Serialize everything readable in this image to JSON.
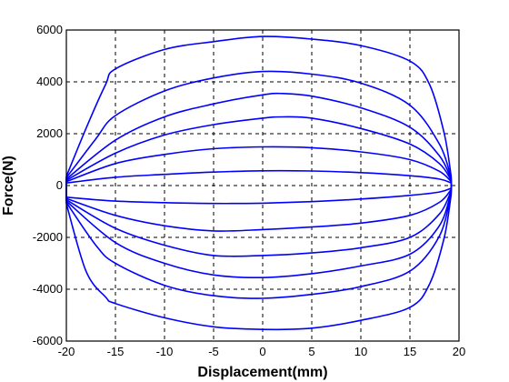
{
  "chart_data": {
    "type": "line",
    "title": "",
    "xlabel": "Displacement(mm)",
    "ylabel": "Force(N)",
    "xlim": [
      -20,
      20
    ],
    "ylim": [
      -6000,
      6000
    ],
    "xticks": [
      -20,
      -15,
      -10,
      -5,
      0,
      5,
      10,
      15,
      20
    ],
    "yticks": [
      -6000,
      -4000,
      -2000,
      0,
      2000,
      4000,
      6000
    ],
    "grid": true,
    "line_color": "#0000ff",
    "series": [
      {
        "upper": [
          [
            -20,
            100
          ],
          [
            -15,
            320
          ],
          [
            -10,
            430
          ],
          [
            -5,
            520
          ],
          [
            0,
            570
          ],
          [
            5,
            560
          ],
          [
            10,
            500
          ],
          [
            15,
            380
          ],
          [
            18,
            250
          ],
          [
            19.2,
            100
          ]
        ],
        "lower": [
          [
            -20,
            -450
          ],
          [
            -15,
            -600
          ],
          [
            -10,
            -660
          ],
          [
            -5,
            -690
          ],
          [
            0,
            -680
          ],
          [
            5,
            -620
          ],
          [
            10,
            -520
          ],
          [
            15,
            -380
          ],
          [
            18,
            -250
          ],
          [
            19.2,
            -100
          ]
        ]
      },
      {
        "upper": [
          [
            -20,
            150
          ],
          [
            -15,
            850
          ],
          [
            -10,
            1200
          ],
          [
            -5,
            1420
          ],
          [
            0,
            1490
          ],
          [
            5,
            1460
          ],
          [
            10,
            1300
          ],
          [
            15,
            1000
          ],
          [
            18,
            550
          ],
          [
            19.2,
            150
          ]
        ],
        "lower": [
          [
            -20,
            -500
          ],
          [
            -15,
            -1150
          ],
          [
            -10,
            -1550
          ],
          [
            -5,
            -1750
          ],
          [
            0,
            -1700
          ],
          [
            5,
            -1600
          ],
          [
            10,
            -1450
          ],
          [
            15,
            -1150
          ],
          [
            18,
            -650
          ],
          [
            19.2,
            -150
          ]
        ]
      },
      {
        "upper": [
          [
            -20,
            200
          ],
          [
            -15,
            1250
          ],
          [
            -10,
            1950
          ],
          [
            -5,
            2350
          ],
          [
            0,
            2600
          ],
          [
            2,
            2650
          ],
          [
            5,
            2600
          ],
          [
            10,
            2200
          ],
          [
            15,
            1600
          ],
          [
            18,
            850
          ],
          [
            19.2,
            200
          ]
        ],
        "lower": [
          [
            -20,
            -550
          ],
          [
            -15,
            -1650
          ],
          [
            -10,
            -2300
          ],
          [
            -5,
            -2700
          ],
          [
            0,
            -2700
          ],
          [
            5,
            -2600
          ],
          [
            10,
            -2400
          ],
          [
            15,
            -2000
          ],
          [
            18,
            -1100
          ],
          [
            19.2,
            -200
          ]
        ]
      },
      {
        "upper": [
          [
            -20,
            250
          ],
          [
            -15,
            1750
          ],
          [
            -10,
            2650
          ],
          [
            -5,
            3150
          ],
          [
            0,
            3500
          ],
          [
            2,
            3550
          ],
          [
            5,
            3450
          ],
          [
            10,
            3000
          ],
          [
            15,
            2250
          ],
          [
            18,
            1150
          ],
          [
            19.2,
            250
          ]
        ],
        "lower": [
          [
            -20,
            -600
          ],
          [
            -15,
            -2200
          ],
          [
            -10,
            -3000
          ],
          [
            -5,
            -3450
          ],
          [
            0,
            -3550
          ],
          [
            5,
            -3400
          ],
          [
            10,
            -3100
          ],
          [
            15,
            -2650
          ],
          [
            18,
            -1550
          ],
          [
            19.2,
            -250
          ]
        ]
      },
      {
        "upper": [
          [
            -20,
            300
          ],
          [
            -17,
            1800
          ],
          [
            -15,
            2700
          ],
          [
            -10,
            3650
          ],
          [
            -5,
            4150
          ],
          [
            0,
            4400
          ],
          [
            5,
            4300
          ],
          [
            10,
            3950
          ],
          [
            15,
            3100
          ],
          [
            18,
            1600
          ],
          [
            19.2,
            300
          ]
        ],
        "lower": [
          [
            -20,
            -650
          ],
          [
            -17,
            -2300
          ],
          [
            -15,
            -3000
          ],
          [
            -10,
            -3850
          ],
          [
            -5,
            -4250
          ],
          [
            0,
            -4350
          ],
          [
            5,
            -4200
          ],
          [
            10,
            -3900
          ],
          [
            15,
            -3300
          ],
          [
            18,
            -1950
          ],
          [
            19.2,
            -300
          ]
        ]
      },
      {
        "upper": [
          [
            -20,
            350
          ],
          [
            -18,
            2200
          ],
          [
            -16,
            3900
          ],
          [
            -15,
            4500
          ],
          [
            -10,
            5250
          ],
          [
            -5,
            5550
          ],
          [
            0,
            5750
          ],
          [
            5,
            5650
          ],
          [
            10,
            5400
          ],
          [
            15,
            4800
          ],
          [
            17,
            3900
          ],
          [
            18.5,
            2000
          ],
          [
            19.2,
            350
          ]
        ],
        "lower": [
          [
            -20,
            -700
          ],
          [
            -18,
            -3300
          ],
          [
            -16,
            -4300
          ],
          [
            -15,
            -4550
          ],
          [
            -10,
            -5100
          ],
          [
            -5,
            -5450
          ],
          [
            0,
            -5550
          ],
          [
            5,
            -5500
          ],
          [
            10,
            -5200
          ],
          [
            15,
            -4700
          ],
          [
            17,
            -3800
          ],
          [
            18.5,
            -2000
          ],
          [
            19.2,
            -350
          ]
        ]
      }
    ]
  }
}
